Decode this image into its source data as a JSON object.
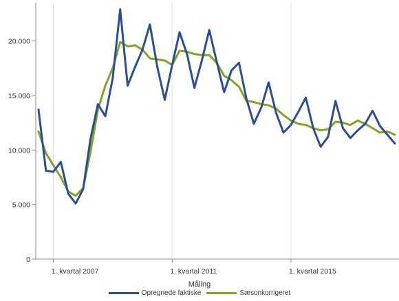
{
  "chart_data": {
    "type": "line",
    "x": [
      "2006Q3",
      "2006Q4",
      "2007Q1",
      "2007Q2",
      "2007Q3",
      "2007Q4",
      "2008Q1",
      "2008Q2",
      "2008Q3",
      "2008Q4",
      "2009Q1",
      "2009Q2",
      "2009Q3",
      "2009Q4",
      "2010Q1",
      "2010Q2",
      "2010Q3",
      "2010Q4",
      "2011Q1",
      "2011Q2",
      "2011Q3",
      "2011Q4",
      "2012Q1",
      "2012Q2",
      "2012Q3",
      "2012Q4",
      "2013Q1",
      "2013Q2",
      "2013Q3",
      "2013Q4",
      "2014Q1",
      "2014Q2",
      "2014Q3",
      "2014Q4",
      "2015Q1",
      "2015Q2",
      "2015Q3",
      "2015Q4",
      "2016Q1",
      "2016Q2",
      "2016Q3",
      "2016Q4",
      "2017Q1",
      "2017Q2",
      "2017Q3",
      "2017Q4",
      "2018Q1",
      "2018Q2",
      "2018Q3"
    ],
    "x_ticks": [
      {
        "label": "1. kvartal 2007",
        "index": 2
      },
      {
        "label": "1. kvartal 2011",
        "index": 18
      },
      {
        "label": "1. kvartal 2015",
        "index": 34
      }
    ],
    "ylim": [
      0,
      23500
    ],
    "y_ticks": [
      {
        "value": 0,
        "label": "0"
      },
      {
        "value": 5000,
        "label": "5.000"
      },
      {
        "value": 10000,
        "label": "10.000"
      },
      {
        "value": 15000,
        "label": "15.000"
      },
      {
        "value": 20000,
        "label": "20.000"
      }
    ],
    "grid": "vertical",
    "legend_title": "Måling",
    "legend_position": "bottom",
    "series": [
      {
        "name": "Opregnede faktiske",
        "color": "#2a4d9b",
        "values": [
          13700,
          8100,
          8000,
          8900,
          6000,
          5100,
          6400,
          11000,
          14200,
          13100,
          16600,
          22900,
          15900,
          17600,
          19200,
          21500,
          17600,
          14600,
          17800,
          20800,
          18800,
          15700,
          18200,
          21000,
          18100,
          15300,
          17300,
          18000,
          14700,
          12400,
          13900,
          16200,
          13400,
          11600,
          12300,
          13500,
          14800,
          12000,
          10300,
          11200,
          14500,
          12000,
          11100,
          11800,
          12400,
          13600,
          12200,
          11400,
          10600
        ]
      },
      {
        "name": "Sæsonkorrigeret",
        "color": "#7fa61c",
        "values": [
          11700,
          9700,
          8600,
          7500,
          6200,
          5800,
          6500,
          9800,
          13700,
          15900,
          17500,
          19900,
          19500,
          19600,
          19200,
          18400,
          18300,
          18200,
          17800,
          19100,
          19000,
          18800,
          18700,
          18700,
          18000,
          16800,
          16400,
          15800,
          14500,
          14400,
          14200,
          14100,
          13800,
          13200,
          12700,
          12400,
          12300,
          12000,
          11800,
          11900,
          12600,
          12500,
          12300,
          12700,
          12400,
          12000,
          11600,
          11700,
          11400
        ]
      }
    ]
  }
}
